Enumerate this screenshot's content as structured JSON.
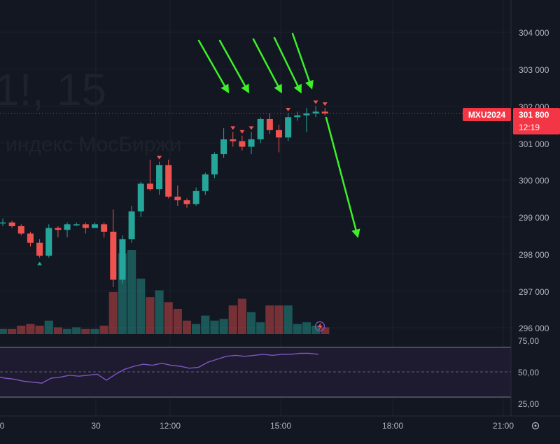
{
  "watermark": {
    "symbol_interval": "1!, 15",
    "description": "индекс МосБиржи"
  },
  "price_axis": {
    "ticks": [
      "304 000",
      "303 000",
      "302 000",
      "301 000",
      "300 000",
      "299 000",
      "298 000",
      "297 000",
      "296 000"
    ],
    "symbol_badge": "MXU2024",
    "last_price": "301 800",
    "countdown": "12:19"
  },
  "rsi_axis": {
    "ticks": [
      "75,00",
      "50,00",
      "25,00"
    ]
  },
  "time_axis": {
    "ticks": [
      "0",
      "30",
      "12:00",
      "15:00",
      "18:00",
      "21:00"
    ]
  },
  "colors": {
    "up": "#26a69a",
    "down": "#ef5350",
    "rsi": "#7e57c2",
    "arrows": "#3cf02a",
    "background": "#131722"
  },
  "chart_data": [
    {
      "type": "candlestick",
      "interval": "15",
      "ylim": [
        295850,
        304300
      ],
      "last_price": 301800,
      "candles": [
        {
          "o": 298850,
          "h": 298950,
          "l": 298750,
          "c": 298850
        },
        {
          "o": 298850,
          "h": 298900,
          "l": 298700,
          "c": 298750
        },
        {
          "o": 298750,
          "h": 298800,
          "l": 298500,
          "c": 298550
        },
        {
          "o": 298550,
          "h": 298600,
          "l": 298200,
          "c": 298300
        },
        {
          "o": 298300,
          "h": 298400,
          "l": 297900,
          "c": 297950
        },
        {
          "o": 297950,
          "h": 298800,
          "l": 297900,
          "c": 298700
        },
        {
          "o": 298700,
          "h": 298750,
          "l": 298450,
          "c": 298650
        },
        {
          "o": 298650,
          "h": 298850,
          "l": 298450,
          "c": 298800
        },
        {
          "o": 298800,
          "h": 298850,
          "l": 298750,
          "c": 298800
        },
        {
          "o": 298800,
          "h": 298850,
          "l": 298550,
          "c": 298700
        },
        {
          "o": 298700,
          "h": 298850,
          "l": 298700,
          "c": 298800
        },
        {
          "o": 298800,
          "h": 298850,
          "l": 298450,
          "c": 298600
        },
        {
          "o": 298600,
          "h": 299200,
          "l": 297100,
          "c": 297300
        },
        {
          "o": 297300,
          "h": 298500,
          "l": 297200,
          "c": 298400
        },
        {
          "o": 298400,
          "h": 299300,
          "l": 298300,
          "c": 299150
        },
        {
          "o": 299150,
          "h": 299950,
          "l": 299000,
          "c": 299900
        },
        {
          "o": 299900,
          "h": 300550,
          "l": 299700,
          "c": 299750
        },
        {
          "o": 299750,
          "h": 300500,
          "l": 299600,
          "c": 300400
        },
        {
          "o": 300400,
          "h": 300550,
          "l": 299500,
          "c": 299550
        },
        {
          "o": 299550,
          "h": 299850,
          "l": 299300,
          "c": 299450
        },
        {
          "o": 299450,
          "h": 299500,
          "l": 299250,
          "c": 299350
        },
        {
          "o": 299350,
          "h": 299800,
          "l": 299300,
          "c": 299700
        },
        {
          "o": 299700,
          "h": 300200,
          "l": 299600,
          "c": 300150
        },
        {
          "o": 300150,
          "h": 300750,
          "l": 300050,
          "c": 300700
        },
        {
          "o": 300700,
          "h": 301400,
          "l": 300600,
          "c": 301100
        },
        {
          "o": 301100,
          "h": 301300,
          "l": 300900,
          "c": 301050
        },
        {
          "o": 301050,
          "h": 301200,
          "l": 300800,
          "c": 300900
        },
        {
          "o": 300900,
          "h": 301300,
          "l": 300700,
          "c": 301100
        },
        {
          "o": 301100,
          "h": 301700,
          "l": 301000,
          "c": 301650
        },
        {
          "o": 301650,
          "h": 301800,
          "l": 301250,
          "c": 301350
        },
        {
          "o": 301350,
          "h": 301500,
          "l": 300750,
          "c": 301150
        },
        {
          "o": 301150,
          "h": 301800,
          "l": 301050,
          "c": 301700
        },
        {
          "o": 301700,
          "h": 301850,
          "l": 301600,
          "c": 301750
        },
        {
          "o": 301750,
          "h": 301950,
          "l": 301300,
          "c": 301800
        },
        {
          "o": 301800,
          "h": 302000,
          "l": 301700,
          "c": 301850
        },
        {
          "o": 301850,
          "h": 301950,
          "l": 301750,
          "c": 301800
        }
      ],
      "volume": [
        3,
        3,
        5,
        6,
        5,
        8,
        4,
        3,
        4,
        3,
        3,
        5,
        25,
        48,
        50,
        33,
        22,
        26,
        19,
        15,
        8,
        6,
        11,
        8,
        9,
        17,
        21,
        13,
        7,
        17,
        17,
        17,
        6,
        7,
        5,
        4
      ]
    },
    {
      "type": "line",
      "name": "RSI",
      "ylim": [
        25,
        75
      ],
      "values": [
        46,
        44,
        43,
        41,
        40,
        39,
        44,
        45,
        47,
        46,
        47,
        48,
        42,
        48,
        53,
        56,
        58,
        57,
        59,
        57,
        56,
        54,
        55,
        60,
        63,
        66,
        67,
        66,
        67,
        68,
        67,
        68,
        68,
        69,
        69,
        68
      ]
    }
  ]
}
